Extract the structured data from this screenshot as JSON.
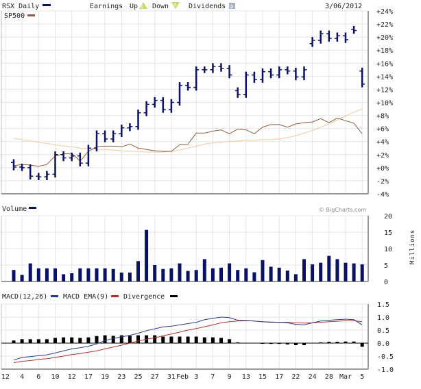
{
  "header": {
    "symbol_label": "RSX Daily",
    "earnings_label": "Earnings",
    "up_label": "Up",
    "up_icon_letter": "E",
    "down_label": "Down",
    "down_icon_letter": "E",
    "dividends_label": "Dividends",
    "dividends_icon_letter": "D",
    "date": "3/06/2012",
    "sp500_label": "SP500"
  },
  "volume_panel": {
    "title": "Volume",
    "copyright": "© BigCharts.com",
    "unit_label": "Millions"
  },
  "macd_panel": {
    "macd_label": "MACD(12,26)",
    "ema_label": "MACD EMA(9)",
    "divergence_label": "Divergence"
  },
  "colors": {
    "price": "#0a1266",
    "sp500": "#8b5a3c",
    "ma": "#f0c8a0",
    "macd": "#2a3a8a",
    "ema": "#b03030",
    "divergence": "#000000",
    "grid": "#e4e4e4"
  },
  "chart_data": [
    {
      "type": "ohlc",
      "title": "RSX Daily",
      "ylabel": "% change",
      "ylim": [
        -4,
        24
      ],
      "yticks": [
        "+24%",
        "+22%",
        "+20%",
        "+18%",
        "+16%",
        "+14%",
        "+12%",
        "+10%",
        "+8%",
        "+6%",
        "+4%",
        "+2%",
        "+0%",
        "-2%",
        "-4%"
      ],
      "ytick_values": [
        24,
        22,
        20,
        18,
        16,
        14,
        12,
        10,
        8,
        6,
        4,
        2,
        0,
        -2,
        -4
      ],
      "x_labels": [
        {
          "label": "12",
          "index": -1
        },
        {
          "label": "4",
          "index": 1
        },
        {
          "label": "6",
          "index": 3
        },
        {
          "label": "10",
          "index": 5
        },
        {
          "label": "12",
          "index": 7
        },
        {
          "label": "17",
          "index": 9
        },
        {
          "label": "19",
          "index": 11
        },
        {
          "label": "23",
          "index": 13
        },
        {
          "label": "25",
          "index": 15
        },
        {
          "label": "27",
          "index": 17
        },
        {
          "label": "31",
          "index": 19
        },
        {
          "label": "Feb",
          "index": 20
        },
        {
          "label": "3",
          "index": 22
        },
        {
          "label": "7",
          "index": 24
        },
        {
          "label": "9",
          "index": 26
        },
        {
          "label": "13",
          "index": 28
        },
        {
          "label": "15",
          "index": 30
        },
        {
          "label": "17",
          "index": 32
        },
        {
          "label": "22",
          "index": 34
        },
        {
          "label": "24",
          "index": 36
        },
        {
          "label": "28",
          "index": 38
        },
        {
          "label": "Mar",
          "index": 40
        },
        {
          "label": "5",
          "index": 42
        }
      ],
      "series": [
        {
          "name": "RSX",
          "open": [
            0.8,
            0.1,
            0,
            -1.3,
            -1.4,
            -1.0,
            2.0,
            1.5,
            1.8,
            0.7,
            3.0,
            5.2,
            4.4,
            5.2,
            6.1,
            6.3,
            8.4,
            9.7,
            10.3,
            8.9,
            10.0,
            12.6,
            12.3,
            15.0,
            15.0,
            15.5,
            15.2,
            11.8,
            11.2,
            14.2,
            13.5,
            14.7,
            14.2,
            15.0,
            14.8,
            13.9,
            19.0,
            19.5,
            20.5,
            19.8,
            20.2,
            21.2,
            14.8
          ],
          "close": [
            0.1,
            0,
            -1.3,
            -1.4,
            -1.0,
            2.0,
            1.5,
            1.8,
            0.7,
            3.0,
            5.2,
            4.4,
            5.2,
            6.1,
            6.3,
            8.4,
            9.7,
            10.3,
            8.9,
            10.0,
            12.6,
            12.3,
            15.0,
            15.0,
            15.5,
            15.2,
            14.2,
            11.2,
            14.2,
            13.5,
            14.7,
            14.2,
            15.0,
            14.8,
            13.9,
            15.0,
            19.5,
            20.5,
            19.8,
            20.2,
            19.6,
            21.0,
            12.8
          ]
        },
        {
          "name": "SP500",
          "values": [
            0.3,
            0.5,
            0.4,
            0.2,
            0.5,
            1.8,
            2.1,
            2.2,
            1.0,
            2.5,
            3.2,
            3.3,
            3.3,
            3.2,
            3.6,
            3.0,
            2.8,
            2.6,
            2.5,
            2.5,
            3.5,
            3.6,
            5.3,
            5.3,
            5.6,
            5.8,
            5.2,
            5.9,
            5.8,
            5.2,
            6.2,
            6.6,
            6.6,
            6.2,
            6.7,
            6.9,
            7.0,
            7.5,
            6.9,
            7.6,
            7.2,
            6.8,
            5.2
          ]
        },
        {
          "name": "Moving Average",
          "values": [
            4.5,
            4.3,
            4.1,
            3.9,
            3.7,
            3.5,
            3.3,
            3.2,
            3.0,
            2.9,
            2.8,
            2.8,
            2.7,
            2.6,
            2.5,
            2.5,
            2.4,
            2.4,
            2.4,
            2.5,
            2.7,
            3.0,
            3.3,
            3.6,
            3.8,
            3.9,
            4.0,
            4.1,
            4.2,
            4.2,
            4.3,
            4.3,
            4.4,
            4.6,
            4.9,
            5.3,
            5.7,
            6.2,
            6.7,
            7.3,
            7.9,
            8.5,
            9.0
          ]
        }
      ]
    },
    {
      "type": "bar",
      "title": "Volume",
      "ylabel": "Millions",
      "ylim": [
        0,
        20
      ],
      "yticks": [
        "20",
        "15",
        "10",
        "5",
        "0"
      ],
      "ytick_values": [
        20,
        15,
        10,
        5,
        0
      ],
      "values": [
        3.5,
        2,
        5.5,
        4,
        4,
        4,
        2.2,
        2.5,
        4,
        4,
        4,
        4,
        3.8,
        2.7,
        2.7,
        6.2,
        15.7,
        5,
        3.8,
        4,
        5.5,
        3.2,
        3.5,
        6.8,
        4,
        4.2,
        5.5,
        3.5,
        4,
        2.8,
        6.5,
        4.5,
        4.2,
        3.3,
        2.2,
        6.8,
        5.2,
        5.7,
        7.8,
        6.8,
        5.7,
        5.5,
        5.2
      ]
    },
    {
      "type": "line",
      "title": "MACD(12,26)",
      "ylim": [
        -1.0,
        1.5
      ],
      "yticks": [
        "1.5",
        "1.0",
        "0.5",
        "0.0",
        "-0.5",
        "-1.0"
      ],
      "ytick_values": [
        1.5,
        1.0,
        0.5,
        0.0,
        -0.5,
        -1.0
      ],
      "series": [
        {
          "name": "MACD(12,26)",
          "values": [
            -0.65,
            -0.55,
            -0.52,
            -0.48,
            -0.45,
            -0.38,
            -0.3,
            -0.22,
            -0.18,
            -0.12,
            -0.03,
            0.1,
            0.18,
            0.24,
            0.3,
            0.38,
            0.48,
            0.55,
            0.62,
            0.65,
            0.7,
            0.75,
            0.8,
            0.9,
            0.95,
            1.0,
            0.98,
            0.88,
            0.87,
            0.85,
            0.82,
            0.8,
            0.8,
            0.78,
            0.72,
            0.7,
            0.78,
            0.85,
            0.88,
            0.9,
            0.92,
            0.9,
            0.7
          ]
        },
        {
          "name": "MACD EMA(9)",
          "values": [
            -0.75,
            -0.7,
            -0.67,
            -0.63,
            -0.6,
            -0.55,
            -0.5,
            -0.44,
            -0.4,
            -0.35,
            -0.3,
            -0.22,
            -0.15,
            -0.08,
            0.0,
            0.08,
            0.15,
            0.2,
            0.28,
            0.35,
            0.42,
            0.5,
            0.56,
            0.63,
            0.7,
            0.78,
            0.82,
            0.85,
            0.86,
            0.85,
            0.82,
            0.81,
            0.8,
            0.8,
            0.78,
            0.77,
            0.78,
            0.8,
            0.82,
            0.84,
            0.86,
            0.86,
            0.82
          ]
        },
        {
          "name": "Divergence",
          "type": "bar",
          "values": [
            0.1,
            0.15,
            0.15,
            0.15,
            0.15,
            0.2,
            0.22,
            0.22,
            0.2,
            0.22,
            0.27,
            0.3,
            0.28,
            0.3,
            0.28,
            0.3,
            0.3,
            0.3,
            0.25,
            0.25,
            0.25,
            0.25,
            0.25,
            0.22,
            0.22,
            0.2,
            0.15,
            0.03,
            0,
            0,
            -0.02,
            -0.03,
            -0.03,
            -0.05,
            -0.08,
            -0.08,
            0,
            0.03,
            0.05,
            0.05,
            0.06,
            0.06,
            -0.14
          ]
        }
      ]
    }
  ]
}
